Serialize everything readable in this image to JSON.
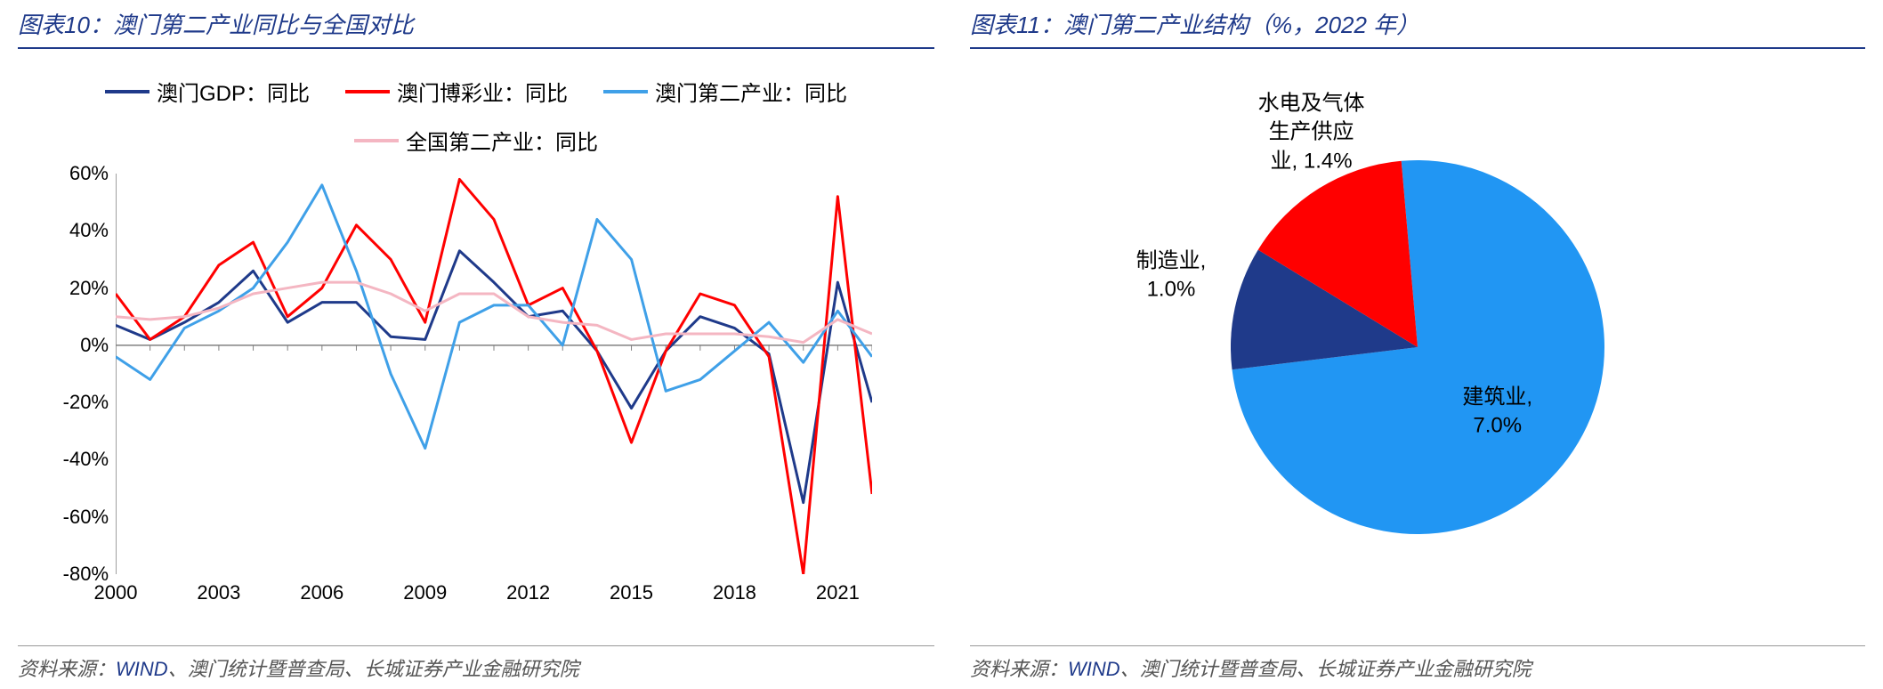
{
  "left": {
    "title": "图表10：澳门第二产业同比与全国对比",
    "source_prefix": "资料来源：",
    "source_wind": "WIND",
    "source_rest": "、澳门统计暨普查局、长城证券产业金融研究院",
    "legend": [
      {
        "label": "澳门GDP：同比",
        "color": "#1f3a8a",
        "width": 4
      },
      {
        "label": "澳门博彩业：同比",
        "color": "#ff0000",
        "width": 4
      },
      {
        "label": "澳门第二产业：同比",
        "color": "#3fa0e8",
        "width": 4
      },
      {
        "label": "全国第二产业：同比",
        "color": "#f4b6c2",
        "width": 4
      }
    ],
    "y": {
      "min": -80,
      "max": 60,
      "step": 20,
      "format_suffix": "%"
    },
    "x": {
      "min": 2000,
      "max": 2022,
      "ticks": [
        2000,
        2003,
        2006,
        2009,
        2012,
        2015,
        2018,
        2021
      ]
    },
    "series": [
      {
        "color": "#1f3a8a",
        "w": 3,
        "data": [
          7,
          2,
          8,
          15,
          26,
          8,
          15,
          15,
          3,
          2,
          33,
          22,
          10,
          12,
          -2,
          -22,
          -2,
          10,
          6,
          -3,
          -55,
          22,
          -20
        ]
      },
      {
        "color": "#ff0000",
        "w": 3,
        "data": [
          18,
          2,
          10,
          28,
          36,
          10,
          20,
          42,
          30,
          8,
          58,
          44,
          14,
          20,
          -2,
          -34,
          -2,
          18,
          14,
          -4,
          -80,
          52,
          -52
        ]
      },
      {
        "color": "#3fa0e8",
        "w": 3,
        "data": [
          -4,
          -12,
          6,
          12,
          20,
          36,
          56,
          26,
          -10,
          -36,
          8,
          14,
          14,
          0,
          44,
          30,
          -16,
          -12,
          -2,
          8,
          -6,
          12,
          -4
        ]
      },
      {
        "color": "#f4b6c2",
        "w": 3,
        "data": [
          10,
          9,
          10,
          13,
          18,
          20,
          22,
          22,
          18,
          12,
          18,
          18,
          10,
          8,
          7,
          2,
          4,
          4,
          4,
          3,
          1,
          9,
          4
        ]
      }
    ],
    "axis_color": "#808080",
    "grid_color": "#d0d0d0",
    "bg": "#ffffff"
  },
  "right": {
    "title": "图表11：澳门第二产业结构（%，2022 年）",
    "source_prefix": "资料来源：",
    "source_wind": "WIND",
    "source_rest": "、澳门统计暨普查局、长城证券产业金融研究院",
    "pie": {
      "slices": [
        {
          "label": "建筑业,\n7.0%",
          "value": 7.0,
          "color": "#2196f3"
        },
        {
          "label": "制造业,\n1.0%",
          "value": 1.0,
          "color": "#1f3a8a"
        },
        {
          "label": "水电及气体\n生产供应\n业, 1.4%",
          "value": 1.4,
          "color": "#ff0000"
        }
      ],
      "start_angle_deg": -5,
      "radius": 210,
      "bg": "#ffffff"
    }
  }
}
